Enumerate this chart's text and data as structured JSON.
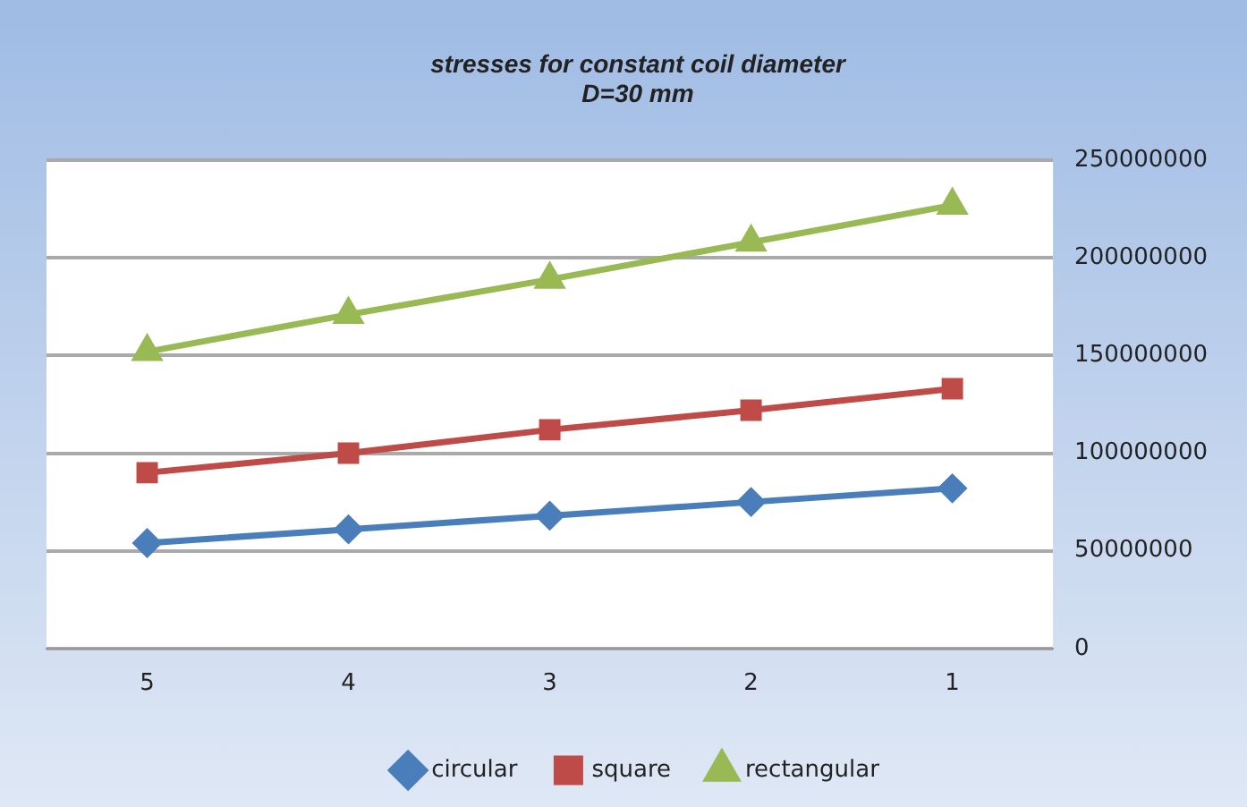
{
  "chart_data": {
    "type": "line",
    "title": "stresses for constant coil diameter\nD=30 mm",
    "categories": [
      "5",
      "4",
      "3",
      "2",
      "1"
    ],
    "series": [
      {
        "name": "circular",
        "color": "#4a7ebb",
        "marker": "diamond",
        "values": [
          54000000,
          61000000,
          68000000,
          75000000,
          82000000
        ]
      },
      {
        "name": "square",
        "color": "#be4b48",
        "marker": "square",
        "values": [
          90000000,
          100000000,
          112000000,
          122000000,
          133000000
        ]
      },
      {
        "name": "rectangular",
        "color": "#98b954",
        "marker": "triangle",
        "values": [
          152000000,
          171000000,
          189000000,
          208000000,
          227000000
        ]
      }
    ],
    "ylim": [
      0,
      250000000
    ],
    "yticks": [
      0,
      50000000,
      100000000,
      150000000,
      200000000,
      250000000
    ],
    "grid": "y",
    "legend": "bottom"
  }
}
